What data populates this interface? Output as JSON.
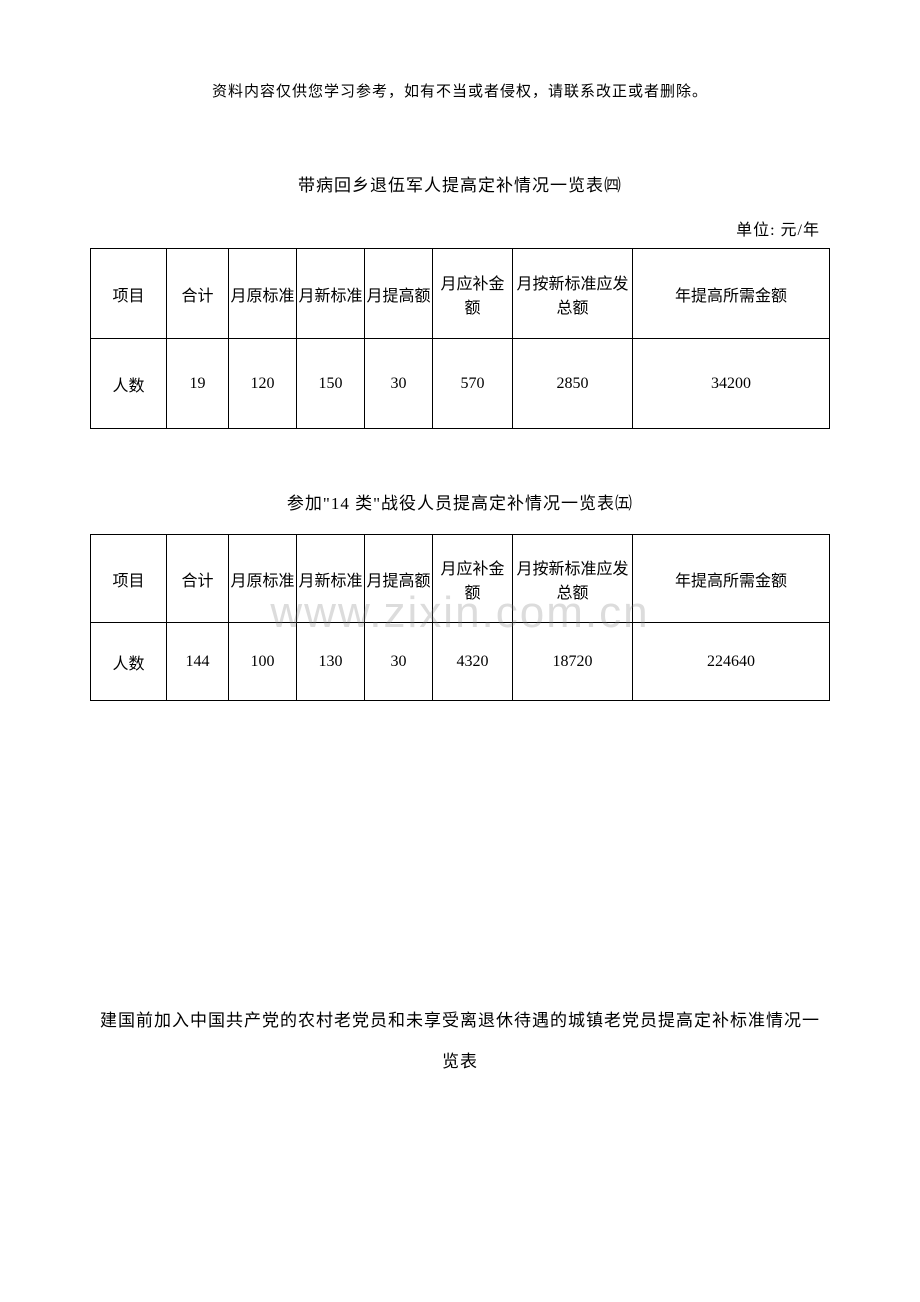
{
  "header_note": "资料内容仅供您学习参考，如有不当或者侵权，请联系改正或者删除。",
  "watermark": "www.zixin.com.cn",
  "table4": {
    "title": "带病回乡退伍军人提高定补情况一览表㈣",
    "unit": "单位: 元/年",
    "columns": [
      "项目",
      "合计",
      "月原标准",
      "月新标准",
      "月提高额",
      "月应补金额",
      "月按新标准应发总额",
      "年提高所需金额"
    ],
    "row_label": "人数",
    "values": [
      "19",
      "120",
      "150",
      "30",
      "570",
      "2850",
      "34200"
    ]
  },
  "table5": {
    "title": "参加\"14 类\"战役人员提高定补情况一览表㈤",
    "columns": [
      "项目",
      "合计",
      "月原标准",
      "月新标准",
      "月提高额",
      "月应补金额",
      "月按新标准应发总额",
      "年提高所需金额"
    ],
    "row_label": "人数",
    "values": [
      "144",
      "100",
      "130",
      "30",
      "4320",
      "18720",
      "224640"
    ]
  },
  "bottom_title": "建国前加入中国共产党的农村老党员和未享受离退休待遇的城镇老党员提高定补标准情况一览表"
}
